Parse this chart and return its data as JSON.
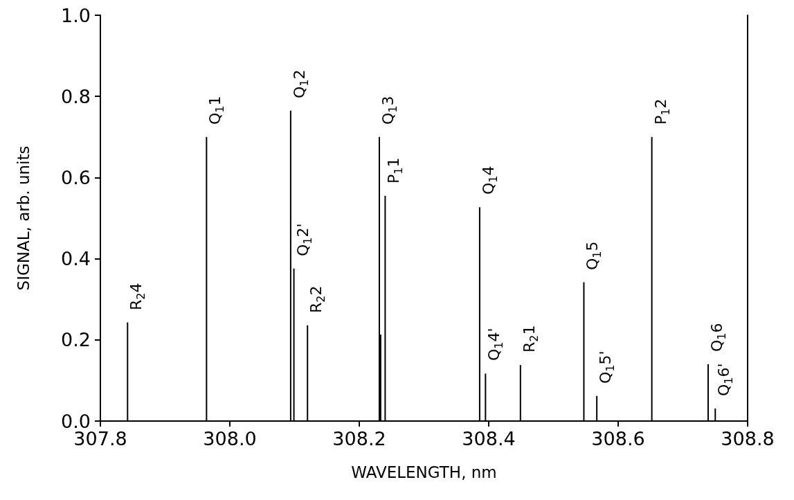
{
  "chart_data": {
    "type": "bar",
    "xlabel": "WAVELENGTH, nm",
    "ylabel": "SIGNAL, arb. units",
    "color": "#000000",
    "x": [
      307.842,
      307.964,
      308.094,
      308.099,
      308.12,
      308.231,
      308.233,
      308.24,
      308.386,
      308.395,
      308.449,
      308.547,
      308.567,
      308.652,
      308.739,
      308.75
    ],
    "values": [
      0.243,
      0.7,
      0.765,
      0.376,
      0.236,
      0.7,
      0.213,
      0.555,
      0.527,
      0.117,
      0.138,
      0.342,
      0.062,
      0.7,
      0.14,
      0.031
    ],
    "xlim": [
      307.8,
      308.8
    ],
    "xticks": [
      307.8,
      {
        "value": 308,
        "label": "308.0"
      },
      308.2,
      308.4,
      308.6,
      308.8
    ],
    "ylim": [
      0,
      1
    ],
    "yticks": [
      {
        "value": 0,
        "label": "0.0"
      },
      0.2,
      0.4,
      0.6,
      0.8,
      {
        "value": 1,
        "label": "1.0"
      }
    ],
    "annotations": [
      {
        "text": "R$_{2}$4",
        "x": 307.842,
        "y": 0.243
      },
      {
        "text": "Q$_{1}$1",
        "x": 307.964,
        "y": 0.7
      },
      {
        "text": "Q$_{1}$2",
        "x": 308.094,
        "y": 0.765
      },
      {
        "text": "Q$_{1}$2'",
        "x": 308.099,
        "y": 0.376
      },
      {
        "text": "R$_{2}$2",
        "x": 308.12,
        "y": 0.236
      },
      {
        "text": "Q$_{1}$3",
        "x": 308.231,
        "y": 0.7
      },
      {
        "text": "P$_{1}$1",
        "x": 308.24,
        "y": 0.555
      },
      {
        "text": "Q$_{1}$4",
        "x": 308.386,
        "y": 0.527
      },
      {
        "text": "Q$_{1}$4'",
        "x": 308.395,
        "y": 0.117
      },
      {
        "text": "R$_{2}$1",
        "x": 308.449,
        "y": 0.138
      },
      {
        "text": "Q$_{1}$5",
        "x": 308.547,
        "y": 0.342
      },
      {
        "text": "Q$_{1}$5'",
        "x": 308.567,
        "y": 0.062
      },
      {
        "text": "P$_{1}$2",
        "x": 308.652,
        "y": 0.7
      },
      {
        "text": "Q$_{1}$6",
        "x": 308.739,
        "y": 0.14
      },
      {
        "text": "Q$_{1}$6'",
        "x": 308.75,
        "y": 0.031
      }
    ]
  }
}
